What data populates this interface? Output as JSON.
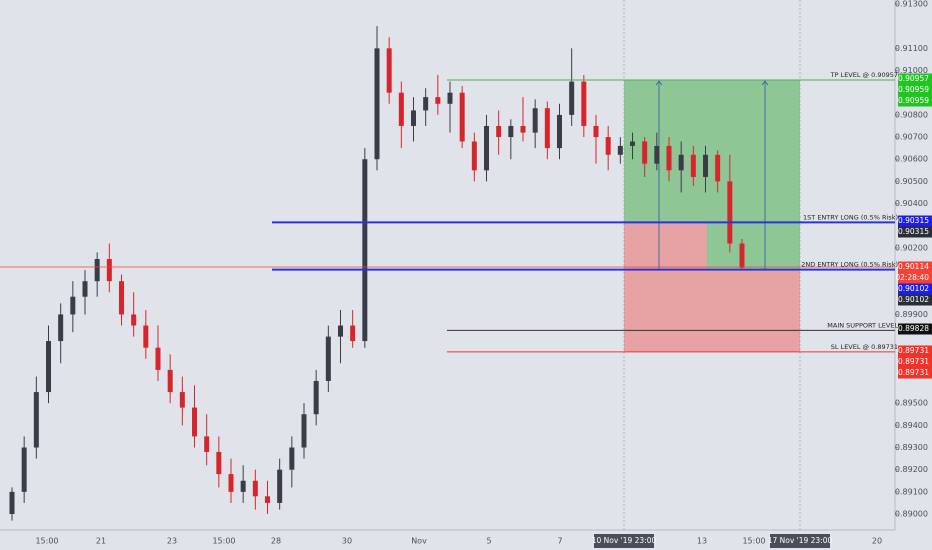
{
  "chart_data": {
    "type": "candlestick",
    "up_color": "#3a3d47",
    "down_color": "#d7262b",
    "ylim": [
      0.88928,
      0.91318
    ],
    "yticks": [
      {
        "value": 0.913,
        "label": "0.91300"
      },
      {
        "value": 0.911,
        "label": "0.91100"
      },
      {
        "value": 0.91,
        "label": "0.91000"
      },
      {
        "value": 0.908,
        "label": "0.90800"
      },
      {
        "value": 0.907,
        "label": "0.90700"
      },
      {
        "value": 0.906,
        "label": "0.90600"
      },
      {
        "value": 0.905,
        "label": "0.90500"
      },
      {
        "value": 0.904,
        "label": "0.90400"
      },
      {
        "value": 0.902,
        "label": "0.90200"
      },
      {
        "value": 0.899,
        "label": "0.89900"
      },
      {
        "value": 0.895,
        "label": "0.89500"
      },
      {
        "value": 0.894,
        "label": "0.89400"
      },
      {
        "value": 0.893,
        "label": "0.89300"
      },
      {
        "value": 0.892,
        "label": "0.89200"
      },
      {
        "value": 0.891,
        "label": "0.89100"
      },
      {
        "value": 0.89,
        "label": "0.89000"
      }
    ],
    "categories": [
      "15:00",
      "21",
      "23",
      "15:00",
      "28",
      "30",
      "Nov",
      "5",
      "7",
      "13",
      "15:00",
      "20"
    ],
    "highlight_dates": [
      "10 Nov '19 23:00",
      "17 Nov '19 23:00"
    ],
    "ohlc": [
      [
        0.89,
        0.8912,
        0.8897,
        0.891
      ],
      [
        0.891,
        0.8935,
        0.8905,
        0.893
      ],
      [
        0.893,
        0.8962,
        0.8925,
        0.8955
      ],
      [
        0.8955,
        0.8985,
        0.895,
        0.8978
      ],
      [
        0.8978,
        0.8995,
        0.8968,
        0.899
      ],
      [
        0.899,
        0.9005,
        0.8982,
        0.8998
      ],
      [
        0.8998,
        0.901,
        0.899,
        0.9005
      ],
      [
        0.9005,
        0.9018,
        0.8998,
        0.9015
      ],
      [
        0.9015,
        0.9022,
        0.9,
        0.9005
      ],
      [
        0.9005,
        0.9008,
        0.8985,
        0.899
      ],
      [
        0.899,
        0.9,
        0.898,
        0.8985
      ],
      [
        0.8985,
        0.8992,
        0.897,
        0.8975
      ],
      [
        0.8975,
        0.8985,
        0.896,
        0.8965
      ],
      [
        0.8965,
        0.8972,
        0.895,
        0.8955
      ],
      [
        0.8955,
        0.8962,
        0.894,
        0.8948
      ],
      [
        0.8948,
        0.8958,
        0.893,
        0.8935
      ],
      [
        0.8935,
        0.8945,
        0.8922,
        0.8928
      ],
      [
        0.8928,
        0.8935,
        0.8912,
        0.8918
      ],
      [
        0.8918,
        0.8925,
        0.8905,
        0.891
      ],
      [
        0.891,
        0.8922,
        0.8905,
        0.8915
      ],
      [
        0.8915,
        0.892,
        0.8902,
        0.8908
      ],
      [
        0.8908,
        0.8915,
        0.89,
        0.8905
      ],
      [
        0.8905,
        0.8925,
        0.8902,
        0.892
      ],
      [
        0.892,
        0.8935,
        0.8912,
        0.893
      ],
      [
        0.893,
        0.895,
        0.8925,
        0.8945
      ],
      [
        0.8945,
        0.8965,
        0.894,
        0.896
      ],
      [
        0.896,
        0.8985,
        0.8955,
        0.898
      ],
      [
        0.898,
        0.8992,
        0.8968,
        0.8985
      ],
      [
        0.8985,
        0.8992,
        0.8975,
        0.8978
      ],
      [
        0.8978,
        0.9065,
        0.8975,
        0.906
      ],
      [
        0.906,
        0.912,
        0.9055,
        0.911
      ],
      [
        0.911,
        0.9115,
        0.9085,
        0.909
      ],
      [
        0.909,
        0.9095,
        0.9065,
        0.9075
      ],
      [
        0.9075,
        0.9088,
        0.9068,
        0.9082
      ],
      [
        0.9082,
        0.9092,
        0.9075,
        0.9088
      ],
      [
        0.9088,
        0.9098,
        0.908,
        0.9085
      ],
      [
        0.9085,
        0.9095,
        0.9072,
        0.909
      ],
      [
        0.909,
        0.9093,
        0.9065,
        0.9068
      ],
      [
        0.9068,
        0.9072,
        0.905,
        0.9055
      ],
      [
        0.9055,
        0.908,
        0.905,
        0.9075
      ],
      [
        0.9075,
        0.9082,
        0.9062,
        0.907
      ],
      [
        0.907,
        0.9078,
        0.906,
        0.9075
      ],
      [
        0.9075,
        0.9088,
        0.9068,
        0.9072
      ],
      [
        0.9072,
        0.9087,
        0.9065,
        0.9083
      ],
      [
        0.9083,
        0.9086,
        0.906,
        0.9065
      ],
      [
        0.9065,
        0.9085,
        0.906,
        0.908
      ],
      [
        0.908,
        0.911,
        0.9075,
        0.9095
      ],
      [
        0.9095,
        0.9098,
        0.907,
        0.9075
      ],
      [
        0.9075,
        0.908,
        0.9058,
        0.907
      ],
      [
        0.907,
        0.9075,
        0.9055,
        0.9062
      ],
      [
        0.9062,
        0.907,
        0.9058,
        0.9066
      ],
      [
        0.9066,
        0.9072,
        0.906,
        0.9068
      ],
      [
        0.9068,
        0.907,
        0.9052,
        0.9058
      ],
      [
        0.9058,
        0.9072,
        0.9055,
        0.9066
      ],
      [
        0.9066,
        0.907,
        0.905,
        0.9055
      ],
      [
        0.9055,
        0.9068,
        0.9045,
        0.9062
      ],
      [
        0.9062,
        0.9066,
        0.9048,
        0.9052
      ],
      [
        0.9052,
        0.9066,
        0.9045,
        0.9062
      ],
      [
        0.9062,
        0.9064,
        0.9045,
        0.905
      ],
      [
        0.905,
        0.9062,
        0.9018,
        0.9022
      ],
      [
        0.9022,
        0.9024,
        0.901,
        0.9011
      ]
    ],
    "levels": [
      {
        "label": "TP LEVEL @ 0.90957",
        "value": 0.90957,
        "color": "#4caf50"
      },
      {
        "label": "1ST ENTRY LONG (0.5% Risk)",
        "value": 0.90315,
        "color": "#2934e0"
      },
      {
        "label": "2ND ENTRY LONG (0.5% Risk)",
        "value": 0.90102,
        "color": "#2934e0"
      },
      {
        "label": "MAIN SUPPORT LEVEL",
        "value": 0.89828,
        "color": "#333333"
      },
      {
        "label": "SL LEVEL @ 0.89731",
        "value": 0.89731,
        "color": "#e53935"
      }
    ],
    "current_price": {
      "value": 0.90114,
      "color": "#f44336",
      "countdown": "02:28:40"
    },
    "price_labels": [
      {
        "value": 0.90957,
        "color": "#22c322"
      },
      {
        "value": 0.90959,
        "color": "#22c322"
      },
      {
        "value": 0.90959,
        "color": "#22c322"
      },
      {
        "value": 0.90315,
        "color": "#1e1ee6"
      },
      {
        "value": 0.90315,
        "color": "#2a2e39"
      },
      {
        "value": 0.90102,
        "color": "#1e1ee6"
      },
      {
        "value": 0.90102,
        "color": "#2a2e39"
      },
      {
        "value": 0.89828,
        "color": "#111111"
      },
      {
        "value": 0.89731,
        "color": "#f0322a"
      },
      {
        "value": 0.89731,
        "color": "#f0322a"
      },
      {
        "value": 0.89731,
        "color": "#f0322a"
      }
    ]
  }
}
